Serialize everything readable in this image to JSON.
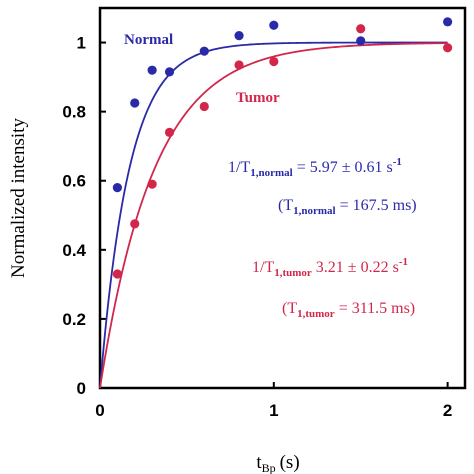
{
  "chart_data": {
    "type": "scatter",
    "xlabel": "t",
    "xlabel_sub": "Bp",
    "xlabel_unit": "(s)",
    "ylabel": "Normalized intensity",
    "xlim": [
      0,
      2.1
    ],
    "ylim": [
      0,
      1.1
    ],
    "xticks": [
      0,
      1,
      2
    ],
    "yticks": [
      0,
      0.2,
      0.4,
      0.6,
      0.8,
      1
    ],
    "xtick_labels": [
      "0",
      "1",
      "2"
    ],
    "ytick_labels": [
      "0",
      "0.2",
      "0.4",
      "0.6",
      "0.8",
      "1"
    ],
    "grid": false,
    "series": [
      {
        "name": "Normal",
        "color": "#2a2aa8",
        "rate": 5.97,
        "points": [
          {
            "x": 0.1,
            "y": 0.58
          },
          {
            "x": 0.2,
            "y": 0.825
          },
          {
            "x": 0.3,
            "y": 0.92
          },
          {
            "x": 0.4,
            "y": 0.915
          },
          {
            "x": 0.6,
            "y": 0.975
          },
          {
            "x": 0.8,
            "y": 1.02
          },
          {
            "x": 1.0,
            "y": 1.05
          },
          {
            "x": 1.5,
            "y": 1.005
          },
          {
            "x": 2.0,
            "y": 1.06
          }
        ]
      },
      {
        "name": "Tumor",
        "color": "#d2264b",
        "rate": 3.21,
        "points": [
          {
            "x": 0.1,
            "y": 0.33
          },
          {
            "x": 0.2,
            "y": 0.475
          },
          {
            "x": 0.3,
            "y": 0.59
          },
          {
            "x": 0.4,
            "y": 0.74
          },
          {
            "x": 0.6,
            "y": 0.815
          },
          {
            "x": 0.8,
            "y": 0.935
          },
          {
            "x": 1.0,
            "y": 0.945
          },
          {
            "x": 1.5,
            "y": 1.04
          },
          {
            "x": 2.0,
            "y": 0.985
          }
        ]
      }
    ],
    "annotations": {
      "normal_rate": {
        "prefix": "1/T",
        "sub": "1,normal",
        "text": " = 5.97 ± 0.61 s",
        "sup": "-1"
      },
      "normal_t1": {
        "prefix": "(T",
        "sub": "1,normal",
        "text": " = 167.5 ms)"
      },
      "tumor_rate": {
        "prefix": "1/T",
        "sub": "1,tumor",
        "text": " 3.21 ± 0.22 s",
        "sup": "-1"
      },
      "tumor_t1": {
        "prefix": "(T",
        "sub": "1,tumor",
        "text": " = 311.5 ms)"
      }
    }
  }
}
